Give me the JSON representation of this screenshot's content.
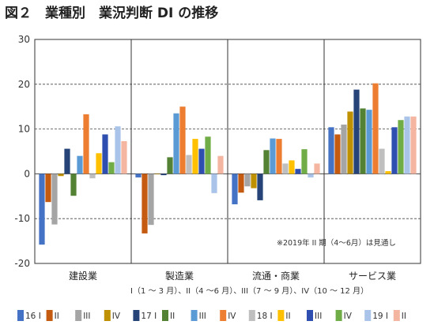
{
  "chart_data": {
    "type": "bar",
    "title": "図２　業種別　業況判断 DI の推移",
    "categories": [
      "建設業",
      "製造業",
      "流通・商業",
      "サービス業"
    ],
    "ylim": [
      -20,
      30
    ],
    "yticks": [
      -20,
      -10,
      0,
      10,
      20,
      30
    ],
    "grid": true,
    "note": "※2019年 II 期（4〜6月）は見通し",
    "quarter_note": "I（1 〜 3 月）、II（4 〜6 月）、III（7 〜 9 月）、IV（10 〜 12 月）",
    "legend_position": "bottom",
    "series": [
      {
        "name": "16 I",
        "color": "#4472c4",
        "values": [
          -15.8,
          -0.8,
          -6.8,
          10.4
        ]
      },
      {
        "name": "II",
        "color": "#c55a11",
        "values": [
          -6.3,
          -13.3,
          -4.2,
          8.8
        ]
      },
      {
        "name": "III",
        "color": "#a5a5a5",
        "values": [
          -11.3,
          -11.4,
          -2.8,
          11.0
        ]
      },
      {
        "name": "IV",
        "color": "#bf9000",
        "values": [
          -0.5,
          -0.1,
          -3.2,
          13.9
        ]
      },
      {
        "name": "17 I",
        "color": "#264478",
        "values": [
          5.6,
          -0.3,
          -5.9,
          18.8
        ]
      },
      {
        "name": "II",
        "color": "#548235",
        "values": [
          -4.9,
          3.7,
          5.3,
          14.6
        ]
      },
      {
        "name": "III",
        "color": "#5b9bd5",
        "values": [
          4.0,
          13.5,
          7.9,
          14.3
        ]
      },
      {
        "name": "IV",
        "color": "#ed7d31",
        "values": [
          13.3,
          15.0,
          7.8,
          20.2
        ]
      },
      {
        "name": "18 I",
        "color": "#bfbfbf",
        "values": [
          -1.0,
          4.2,
          2.3,
          5.6
        ]
      },
      {
        "name": "II",
        "color": "#ffc000",
        "values": [
          4.6,
          7.8,
          3.0,
          0.6
        ]
      },
      {
        "name": "III",
        "color": "#2f4fb0",
        "values": [
          8.8,
          5.6,
          1.1,
          10.4
        ]
      },
      {
        "name": "IV",
        "color": "#70ad47",
        "values": [
          2.6,
          8.3,
          5.5,
          12.0
        ]
      },
      {
        "name": "19 I",
        "color": "#a9c4e8",
        "values": [
          10.6,
          -4.3,
          -0.8,
          12.8
        ]
      },
      {
        "name": "II",
        "color": "#f4b6a0",
        "values": [
          7.3,
          4.0,
          2.3,
          12.8
        ]
      }
    ]
  }
}
